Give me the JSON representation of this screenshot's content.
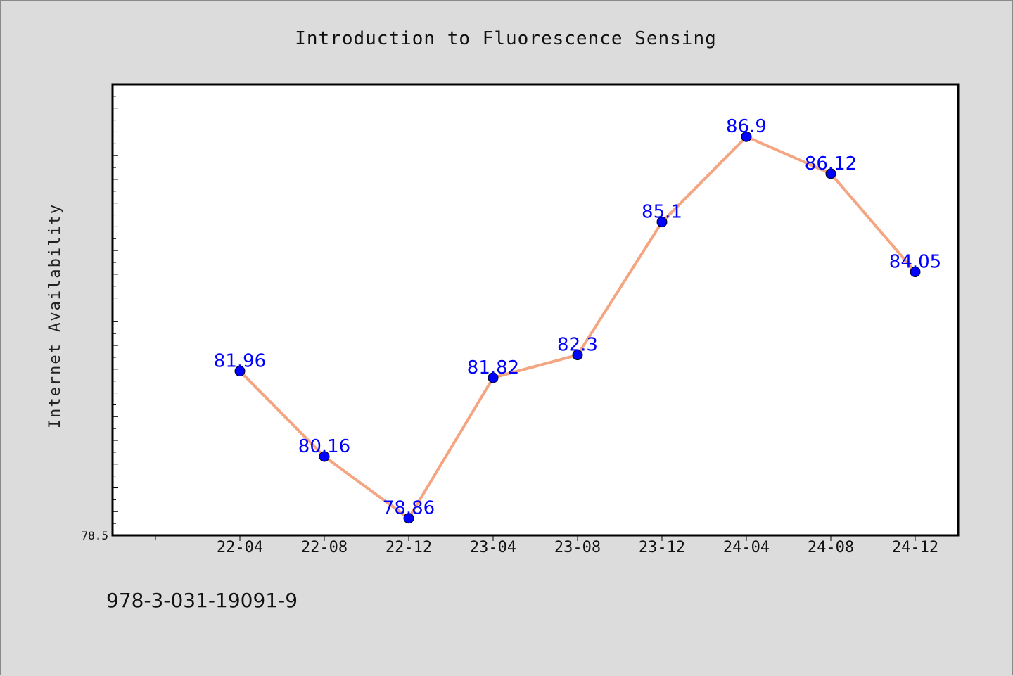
{
  "chart_data": {
    "type": "line",
    "title": "Introduction to Fluorescence Sensing",
    "xlabel": "",
    "ylabel": "Internet Availability",
    "categories": [
      "22-04",
      "22-08",
      "22-12",
      "23-04",
      "23-08",
      "23-12",
      "24-04",
      "24-08",
      "24-12"
    ],
    "series": [
      {
        "values": [
          81.96,
          80.16,
          78.86,
          81.82,
          82.3,
          85.1,
          86.9,
          86.12,
          84.05
        ],
        "labels": [
          "81.96",
          "80.16",
          "78.86",
          "81.82",
          "82.3",
          "85.1",
          "86.9",
          "86.12",
          "84.05"
        ]
      }
    ],
    "ylim": [
      78.5,
      88.0
    ],
    "y_tick_labels": [
      "78.5"
    ],
    "grid": false,
    "colors": {
      "line": "#f4a582",
      "marker": "#0000ff",
      "data_label": "#0000ff"
    }
  },
  "footer": {
    "text": "978-3-031-19091-9"
  }
}
